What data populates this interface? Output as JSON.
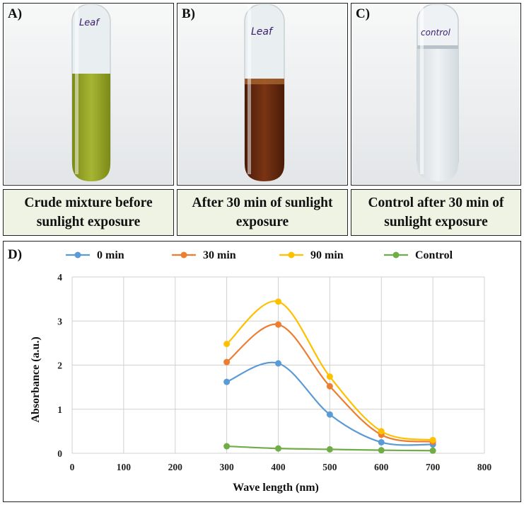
{
  "panels": [
    {
      "label": "A)",
      "tube_label": "Leaf",
      "caption": "Crude mixture before sunlight exposure",
      "liquid": "#9aa82a"
    },
    {
      "label": "B)",
      "tube_label": "Leaf",
      "caption": "After 30 min of sunlight exposure",
      "liquid": "#6b2a0e"
    },
    {
      "label": "C)",
      "tube_label": "control",
      "caption": "Control after 30 min of sunlight exposure",
      "liquid": "#dfe6ea"
    }
  ],
  "chart_label": "D)",
  "chart_data": {
    "type": "line",
    "title": "",
    "xlabel": "Wave length (nm)",
    "ylabel": "Absorbance (a.u.)",
    "xlim": [
      0,
      800
    ],
    "ylim": [
      0,
      4
    ],
    "xticks": [
      "0",
      "100",
      "200",
      "300",
      "400",
      "500",
      "600",
      "700",
      "800"
    ],
    "yticks": [
      "0",
      "1",
      "2",
      "3",
      "4"
    ],
    "grid": true,
    "legend": "top",
    "x": [
      300,
      400,
      500,
      600,
      700
    ],
    "series": [
      {
        "name": "0 min",
        "color": "#5b9bd5",
        "values": [
          1.62,
          2.04,
          0.88,
          0.25,
          0.2
        ]
      },
      {
        "name": "30 min",
        "color": "#ed7d31",
        "values": [
          2.07,
          2.92,
          1.52,
          0.42,
          0.26
        ]
      },
      {
        "name": "90 min",
        "color": "#ffc000",
        "values": [
          2.48,
          3.44,
          1.74,
          0.5,
          0.3
        ]
      },
      {
        "name": "Control",
        "color": "#70ad47",
        "values": [
          0.16,
          0.11,
          0.09,
          0.07,
          0.06
        ]
      }
    ]
  }
}
